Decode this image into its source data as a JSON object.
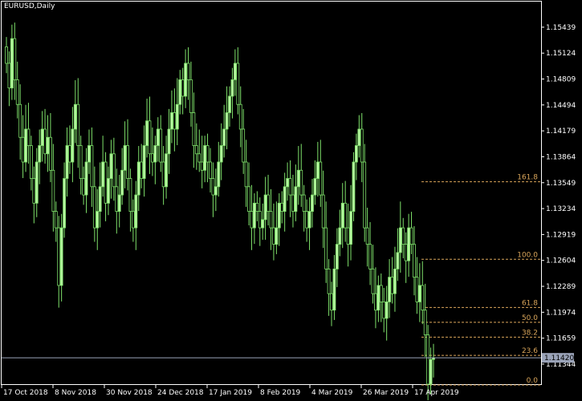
{
  "window": {
    "title": "EURUSD,Daily"
  },
  "colors": {
    "background": "#000000",
    "frame": "#ffffff",
    "bull_candle": "#b6f5a0",
    "bear_candle": "#000000",
    "wick": "#7ee06a",
    "fib": "#d9a55a",
    "current_price_line": "#9aa3b8",
    "current_price_box": "#9aa3b8"
  },
  "chart_data": {
    "type": "candlestick",
    "symbol": "EURUSD",
    "timeframe": "Daily",
    "ylim": [
      1.111,
      1.1575
    ],
    "y_ticks": [
      1.15439,
      1.15124,
      1.14809,
      1.14494,
      1.14179,
      1.13864,
      1.13549,
      1.13234,
      1.12919,
      1.12604,
      1.12289,
      1.11974,
      1.11659,
      1.11344
    ],
    "x_ticks": [
      "17 Oct 2018",
      "8 Nov 2018",
      "30 Nov 2018",
      "24 Dec 2018",
      "17 Jan 2019",
      "8 Feb 2019",
      "4 Mar 2019",
      "26 Mar 2019",
      "17 Apr 2019"
    ],
    "current_price": "1.11420",
    "fibonacci": {
      "levels": [
        {
          "label": "161.8",
          "price": 1.1356
        },
        {
          "label": "100.0",
          "price": 1.12618
        },
        {
          "label": "61.8",
          "price": 1.12032
        },
        {
          "label": "50.0",
          "price": 1.11852
        },
        {
          "label": "38.2",
          "price": 1.11672
        },
        {
          "label": "23.6",
          "price": 1.1145
        },
        {
          "label": "0.0",
          "price": 1.1109
        }
      ]
    },
    "closes": [
      1.15,
      1.147,
      1.153,
      1.148,
      1.145,
      1.141,
      1.138,
      1.142,
      1.14,
      1.136,
      1.133,
      1.138,
      1.14,
      1.142,
      1.139,
      1.141,
      1.137,
      1.132,
      1.13,
      1.123,
      1.13,
      1.136,
      1.14,
      1.138,
      1.142,
      1.145,
      1.14,
      1.136,
      1.134,
      1.138,
      1.14,
      1.135,
      1.13,
      1.132,
      1.135,
      1.138,
      1.133,
      1.136,
      1.139,
      1.135,
      1.132,
      1.134,
      1.137,
      1.14,
      1.136,
      1.132,
      1.13,
      1.134,
      1.138,
      1.136,
      1.14,
      1.143,
      1.139,
      1.138,
      1.14,
      1.142,
      1.138,
      1.135,
      1.139,
      1.142,
      1.144,
      1.142,
      1.145,
      1.148,
      1.146,
      1.15,
      1.148,
      1.144,
      1.14,
      1.139,
      1.138,
      1.137,
      1.14,
      1.138,
      1.136,
      1.134,
      1.135,
      1.138,
      1.14,
      1.142,
      1.144,
      1.146,
      1.148,
      1.15,
      1.145,
      1.142,
      1.138,
      1.135,
      1.132,
      1.13,
      1.133,
      1.132,
      1.13,
      1.131,
      1.134,
      1.132,
      1.13,
      1.128,
      1.13,
      1.133,
      1.132,
      1.135,
      1.136,
      1.134,
      1.132,
      1.135,
      1.137,
      1.134,
      1.132,
      1.13,
      1.132,
      1.134,
      1.136,
      1.138,
      1.134,
      1.13,
      1.125,
      1.122,
      1.12,
      1.125,
      1.128,
      1.13,
      1.133,
      1.13,
      1.128,
      1.132,
      1.138,
      1.14,
      1.142,
      1.138,
      1.13,
      1.128,
      1.125,
      1.122,
      1.12,
      1.123,
      1.121,
      1.119,
      1.121,
      1.124,
      1.122,
      1.125,
      1.127,
      1.13,
      1.128,
      1.126,
      1.13,
      1.128,
      1.124,
      1.121,
      1.123,
      1.12,
      1.117,
      1.111,
      1.114,
      1.1142
    ]
  }
}
